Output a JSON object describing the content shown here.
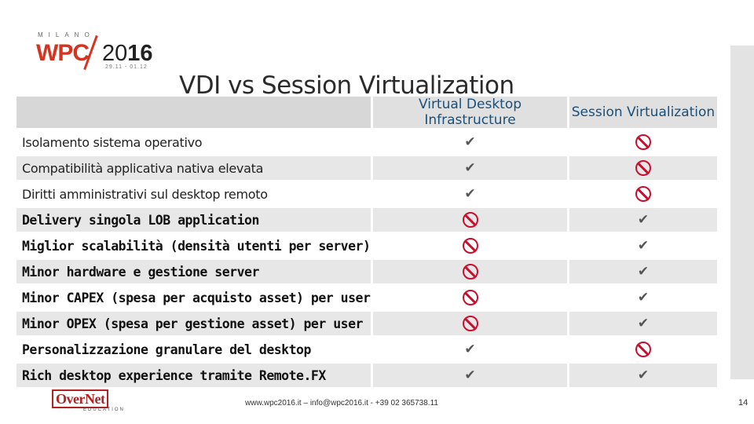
{
  "logo": {
    "city": "MILANO",
    "brand": "WPC",
    "year_prefix": "20",
    "year_suffix": "16",
    "dates": "29.11 - 01.12"
  },
  "slide_title": "VDI vs Session Virtualization",
  "table": {
    "headers": [
      "",
      "Virtual Desktop Infrastructure",
      "Session Virtualization"
    ],
    "rows": [
      {
        "label": "Isolamento sistema operativo",
        "vdi": "yes",
        "session": "no",
        "style": "A"
      },
      {
        "label": "Compatibilità applicativa nativa elevata",
        "vdi": "yes",
        "session": "no",
        "style": "A"
      },
      {
        "label": "Diritti amministrativi sul desktop remoto",
        "vdi": "yes",
        "session": "no",
        "style": "A"
      },
      {
        "label": "Delivery singola LOB application",
        "vdi": "no",
        "session": "yes",
        "style": "B"
      },
      {
        "label": "Miglior scalabilità (densità utenti per server)",
        "vdi": "no",
        "session": "yes",
        "style": "B"
      },
      {
        "label": "Minor hardware e gestione server",
        "vdi": "no",
        "session": "yes",
        "style": "B"
      },
      {
        "label": "Minor CAPEX (spesa per acquisto asset) per user",
        "vdi": "no",
        "session": "yes",
        "style": "B"
      },
      {
        "label": "Minor OPEX (spesa per gestione asset) per user",
        "vdi": "no",
        "session": "yes",
        "style": "B"
      },
      {
        "label": "Personalizzazione granulare del desktop",
        "vdi": "yes",
        "session": "no",
        "style": "B"
      },
      {
        "label": "Rich desktop experience tramite Remote.FX",
        "vdi": "yes",
        "session": "yes",
        "style": "B"
      }
    ]
  },
  "icons": {
    "yes": "check-icon",
    "no": "prohibited-icon",
    "check_glyph": "✔"
  },
  "colors": {
    "accent_red": "#c8102e",
    "header_text": "#1a4f7a",
    "brand_red": "#d7331f"
  },
  "footer": {
    "partner_logo": "OverNet",
    "partner_sub": "EDUCATION",
    "contact": "www.wpc2016.it – info@wpc2016.it - +39 02 365738.11",
    "page_number": "14"
  }
}
